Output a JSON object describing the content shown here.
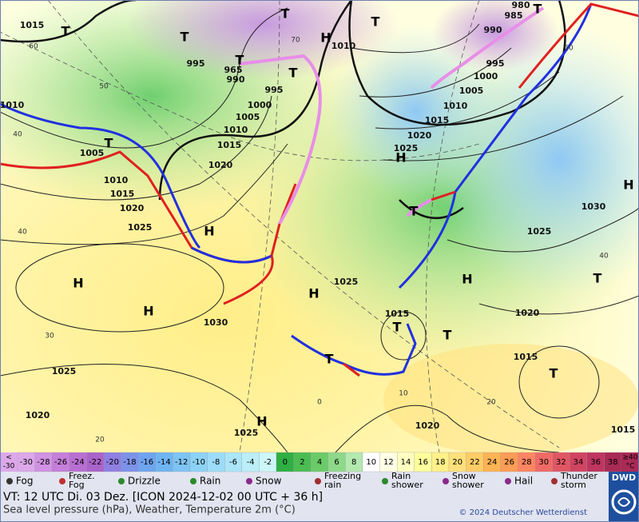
{
  "map": {
    "pressure_labels": [
      "1015",
      "980",
      "985",
      "990",
      "995",
      "1000",
      "1005",
      "1010",
      "1015",
      "1020",
      "1025",
      "1010",
      "995",
      "1000",
      "1005",
      "1010",
      "1015",
      "1020",
      "965",
      "990",
      "995",
      "1010",
      "1005",
      "1010",
      "1015",
      "1020",
      "1025",
      "1030",
      "1025",
      "1015",
      "1020",
      "1015",
      "1025",
      "1030",
      "1025",
      "1020",
      "1025",
      "1020",
      "1015"
    ],
    "highs": [
      "H",
      "H",
      "H",
      "H",
      "H",
      "H",
      "H",
      "H",
      "H"
    ],
    "lows": [
      "T",
      "T",
      "T",
      "T",
      "T",
      "T",
      "T",
      "T",
      "T",
      "T",
      "T",
      "T",
      "T",
      "T"
    ],
    "graticule_labels": [
      "70",
      "60",
      "50",
      "40",
      "40",
      "30",
      "20",
      "60",
      "40",
      "20",
      "10",
      "0"
    ]
  },
  "temperature_scale": {
    "first": [
      "<",
      "-30"
    ],
    "labels": [
      "-30",
      "-28",
      "-26",
      "-24",
      "-22",
      "-20",
      "-18",
      "-16",
      "-14",
      "-12",
      "-10",
      "-8",
      "-6",
      "-4",
      "-2",
      "0",
      "2",
      "4",
      "6",
      "8",
      "10",
      "12",
      "14",
      "16",
      "18",
      "20",
      "22",
      "24",
      "26",
      "28",
      "30",
      "32",
      "34",
      "36",
      "38"
    ],
    "colors": [
      "#dca8ea",
      "#d092e2",
      "#c47fda",
      "#b86fd2",
      "#ab63c9",
      "#8f7fe2",
      "#7d92ea",
      "#6ea4f0",
      "#6fb5f2",
      "#7ec4f4",
      "#8dd2f6",
      "#9cdcf8",
      "#abe5f8",
      "#bbeef8",
      "#cdf6f8",
      "#2fae43",
      "#4bbd52",
      "#6bcb69",
      "#8ed88a",
      "#b3e8ae",
      "#ffffff",
      "#ffffe6",
      "#ffffc2",
      "#ffff9c",
      "#fff08a",
      "#ffe07a",
      "#ffcc66",
      "#ffb455",
      "#ff9c55",
      "#ff8462",
      "#f06a66",
      "#e05663",
      "#d04462",
      "#be3560",
      "#a82a55"
    ],
    "last": [
      "≥40",
      "°C"
    ]
  },
  "weather_legend": [
    [
      "Fog"
    ],
    [
      "Freez.",
      "Fog"
    ],
    [
      "Drizzle"
    ],
    [
      "Rain"
    ],
    [
      "Snow"
    ],
    [
      "Freezing",
      "rain"
    ],
    [
      "Rain",
      "shower"
    ],
    [
      "Snow",
      "shower"
    ],
    [
      "Hail"
    ],
    [
      "Thunder",
      "storm"
    ]
  ],
  "footer": {
    "valid_time": "VT: 12 UTC Di.  03 Dez. [ICON 2024-12-02  00 UTC + 36 h]",
    "description": "Sea level pressure (hPa), Weather, Temperature 2m (°C)",
    "copyright": "© 2024 Deutscher Wetterdienst",
    "logo": "DWD"
  }
}
